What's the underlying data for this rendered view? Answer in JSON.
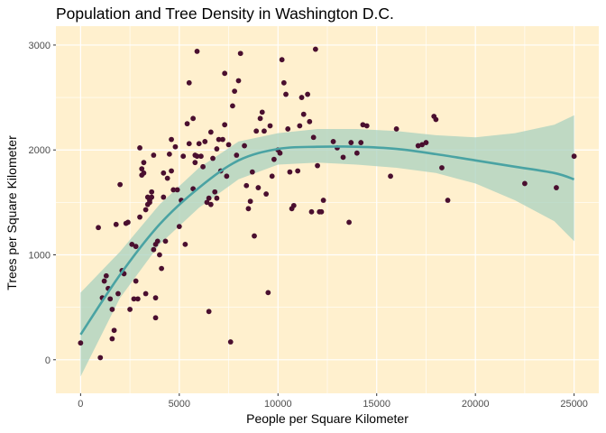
{
  "chart_data": {
    "type": "scatter",
    "title": "Population and Tree Density in Washington D.C.",
    "xlabel": "People per Square Kilometer",
    "ylabel": "Trees per Square Kilometer",
    "xlim": [
      -1250,
      26250
    ],
    "ylim": [
      -320,
      3180
    ],
    "x_ticks": [
      0,
      5000,
      10000,
      15000,
      20000,
      25000
    ],
    "x_tick_labels": [
      "0",
      "5000",
      "10000",
      "15000",
      "20000",
      "25000"
    ],
    "y_ticks": [
      0,
      1000,
      2000,
      3000
    ],
    "y_tick_labels": [
      "0",
      "1000",
      "2000",
      "3000"
    ],
    "grid": true,
    "colors": {
      "panel_background": "#fff0ce",
      "grid_line": "#ffffff",
      "point": "#4a0f2f",
      "smooth_line": "#4aa3a3",
      "confidence_band": "#a9d1bf"
    },
    "points": [
      [
        0,
        160
      ],
      [
        900,
        1260
      ],
      [
        1000,
        20
      ],
      [
        1100,
        590
      ],
      [
        1200,
        750
      ],
      [
        1300,
        800
      ],
      [
        1400,
        680
      ],
      [
        1500,
        580
      ],
      [
        1600,
        480
      ],
      [
        1600,
        200
      ],
      [
        1700,
        280
      ],
      [
        1800,
        1290
      ],
      [
        1900,
        630
      ],
      [
        2000,
        1670
      ],
      [
        2100,
        850
      ],
      [
        2200,
        820
      ],
      [
        2300,
        1300
      ],
      [
        2400,
        1310
      ],
      [
        2500,
        480
      ],
      [
        2600,
        1100
      ],
      [
        2700,
        580
      ],
      [
        2800,
        1080
      ],
      [
        2800,
        750
      ],
      [
        2900,
        580
      ],
      [
        3000,
        1360
      ],
      [
        3000,
        2020
      ],
      [
        3100,
        1820
      ],
      [
        3100,
        1760
      ],
      [
        3200,
        1780
      ],
      [
        3200,
        1880
      ],
      [
        3300,
        1430
      ],
      [
        3300,
        630
      ],
      [
        3400,
        1480
      ],
      [
        3400,
        1550
      ],
      [
        3500,
        1500
      ],
      [
        3500,
        1520
      ],
      [
        3600,
        1550
      ],
      [
        3600,
        1600
      ],
      [
        3700,
        1950
      ],
      [
        3700,
        1050
      ],
      [
        3800,
        400
      ],
      [
        3800,
        590
      ],
      [
        3800,
        1100
      ],
      [
        3900,
        1130
      ],
      [
        4000,
        1000
      ],
      [
        4100,
        870
      ],
      [
        4200,
        1780
      ],
      [
        4200,
        1550
      ],
      [
        4300,
        1130
      ],
      [
        4400,
        1730
      ],
      [
        4500,
        1960
      ],
      [
        4600,
        1800
      ],
      [
        4600,
        2100
      ],
      [
        4700,
        1620
      ],
      [
        4800,
        2030
      ],
      [
        4900,
        1620
      ],
      [
        5000,
        1270
      ],
      [
        5100,
        1520
      ],
      [
        5200,
        1940
      ],
      [
        5300,
        1100
      ],
      [
        5400,
        2250
      ],
      [
        5500,
        2640
      ],
      [
        5500,
        2060
      ],
      [
        5700,
        2300
      ],
      [
        5700,
        1630
      ],
      [
        5800,
        1950
      ],
      [
        5800,
        1880
      ],
      [
        5900,
        1940
      ],
      [
        5900,
        2940
      ],
      [
        6000,
        2060
      ],
      [
        6100,
        1940
      ],
      [
        6200,
        1840
      ],
      [
        6300,
        2080
      ],
      [
        6400,
        1500
      ],
      [
        6500,
        1540
      ],
      [
        6500,
        460
      ],
      [
        6600,
        1480
      ],
      [
        6600,
        2170
      ],
      [
        6700,
        1920
      ],
      [
        6800,
        1600
      ],
      [
        6900,
        1540
      ],
      [
        6900,
        2010
      ],
      [
        7000,
        2100
      ],
      [
        7100,
        1800
      ],
      [
        7200,
        2100
      ],
      [
        7300,
        2240
      ],
      [
        7300,
        2730
      ],
      [
        7400,
        1750
      ],
      [
        7500,
        2050
      ],
      [
        7600,
        170
      ],
      [
        7700,
        2420
      ],
      [
        7800,
        2560
      ],
      [
        7900,
        1950
      ],
      [
        8000,
        2660
      ],
      [
        8100,
        2920
      ],
      [
        8300,
        2040
      ],
      [
        8400,
        1660
      ],
      [
        8500,
        1440
      ],
      [
        8600,
        1510
      ],
      [
        8700,
        1790
      ],
      [
        8800,
        1180
      ],
      [
        8900,
        2180
      ],
      [
        9000,
        1640
      ],
      [
        9100,
        2300
      ],
      [
        9200,
        2360
      ],
      [
        9300,
        2180
      ],
      [
        9400,
        1580
      ],
      [
        9500,
        640
      ],
      [
        9600,
        2230
      ],
      [
        9700,
        1750
      ],
      [
        9800,
        1910
      ],
      [
        10000,
        2000
      ],
      [
        10100,
        1970
      ],
      [
        10200,
        2860
      ],
      [
        10300,
        2640
      ],
      [
        10400,
        2530
      ],
      [
        10500,
        2200
      ],
      [
        10600,
        1790
      ],
      [
        10700,
        1440
      ],
      [
        10800,
        1470
      ],
      [
        11000,
        1800
      ],
      [
        11100,
        2230
      ],
      [
        11200,
        2500
      ],
      [
        11300,
        2340
      ],
      [
        11500,
        2530
      ],
      [
        11600,
        2270
      ],
      [
        11700,
        1410
      ],
      [
        11800,
        2120
      ],
      [
        11900,
        2960
      ],
      [
        12000,
        1850
      ],
      [
        12100,
        1410
      ],
      [
        12200,
        1410
      ],
      [
        12300,
        1520
      ],
      [
        12800,
        2080
      ],
      [
        13000,
        2020
      ],
      [
        13300,
        1930
      ],
      [
        13600,
        1310
      ],
      [
        13700,
        2070
      ],
      [
        14000,
        1970
      ],
      [
        14200,
        2070
      ],
      [
        14300,
        2240
      ],
      [
        14500,
        2230
      ],
      [
        15700,
        1750
      ],
      [
        16000,
        2200
      ],
      [
        17100,
        2040
      ],
      [
        17300,
        2050
      ],
      [
        17500,
        2070
      ],
      [
        17900,
        2320
      ],
      [
        18000,
        2290
      ],
      [
        18300,
        1830
      ],
      [
        18600,
        1520
      ],
      [
        22500,
        1680
      ],
      [
        24100,
        1640
      ],
      [
        25000,
        1940
      ]
    ],
    "smooth_fit": [
      [
        0,
        240
      ],
      [
        2000,
        810
      ],
      [
        4000,
        1290
      ],
      [
        6000,
        1640
      ],
      [
        8000,
        1900
      ],
      [
        10000,
        2010
      ],
      [
        12000,
        2030
      ],
      [
        14000,
        2030
      ],
      [
        16000,
        2010
      ],
      [
        18000,
        1960
      ],
      [
        20000,
        1900
      ],
      [
        22000,
        1840
      ],
      [
        24000,
        1780
      ],
      [
        25000,
        1720
      ]
    ],
    "band_upper": [
      [
        0,
        640
      ],
      [
        2000,
        1030
      ],
      [
        4000,
        1480
      ],
      [
        6000,
        1830
      ],
      [
        8000,
        2080
      ],
      [
        10000,
        2160
      ],
      [
        12000,
        2200
      ],
      [
        14000,
        2200
      ],
      [
        16000,
        2180
      ],
      [
        18000,
        2140
      ],
      [
        20000,
        2120
      ],
      [
        22000,
        2160
      ],
      [
        24000,
        2240
      ],
      [
        25000,
        2330
      ]
    ],
    "band_lower": [
      [
        0,
        -160
      ],
      [
        2000,
        590
      ],
      [
        4000,
        1100
      ],
      [
        6000,
        1450
      ],
      [
        8000,
        1720
      ],
      [
        10000,
        1860
      ],
      [
        12000,
        1880
      ],
      [
        14000,
        1860
      ],
      [
        16000,
        1830
      ],
      [
        18000,
        1780
      ],
      [
        20000,
        1680
      ],
      [
        22000,
        1520
      ],
      [
        24000,
        1320
      ],
      [
        25000,
        1130
      ]
    ]
  }
}
